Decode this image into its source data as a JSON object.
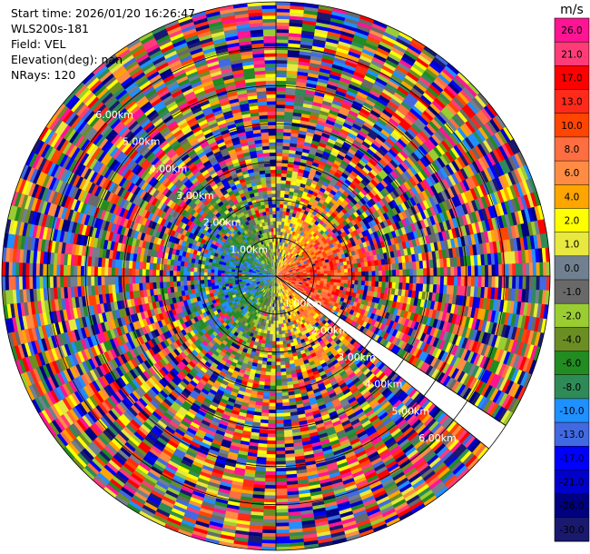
{
  "info": {
    "start_time": "Start time: 2026/01/20 16:26:47",
    "site": "WLS200s-181",
    "field": "Field: VEL",
    "elevation": "Elevation(deg): nan",
    "nrays": "NRays: 120"
  },
  "chart_data": {
    "type": "heatmap",
    "subtype": "polar-ppi",
    "field": "VEL",
    "units": "m/s",
    "n_rays": 120,
    "max_range_km": 7.2,
    "ring_labels": [
      "1.00km",
      "2.00km",
      "3.00km",
      "4.00km",
      "5.00km",
      "6.00km"
    ],
    "ring_ranges_km": [
      1,
      2,
      3,
      4,
      5,
      6
    ],
    "label_bearings_deg": [
      135,
      315
    ],
    "missing_sector_deg": [
      123,
      129
    ],
    "colorbar": {
      "ticks": [
        "26.0",
        "21.0",
        "17.0",
        "13.0",
        "10.0",
        "8.0",
        "6.0",
        "4.0",
        "2.0",
        "1.0",
        "0.0",
        "-1.0",
        "-2.0",
        "-4.0",
        "-6.0",
        "-8.0",
        "-10.0",
        "-13.0",
        "-17.0",
        "-21.0",
        "-26.0",
        "-30.0"
      ],
      "top_value": 30,
      "colors": [
        "#ff1493",
        "#ff3c78",
        "#ff0000",
        "#ff2a1a",
        "#ff4500",
        "#ff6e40",
        "#ff8c42",
        "#ffa500",
        "#ffff00",
        "#e8e840",
        "#708090",
        "#696969",
        "#9acd32",
        "#6b8e23",
        "#228b22",
        "#2e8b57",
        "#1e90ff",
        "#4169e1",
        "#0000ff",
        "#0000cd",
        "#000080",
        "#191970"
      ]
    }
  }
}
